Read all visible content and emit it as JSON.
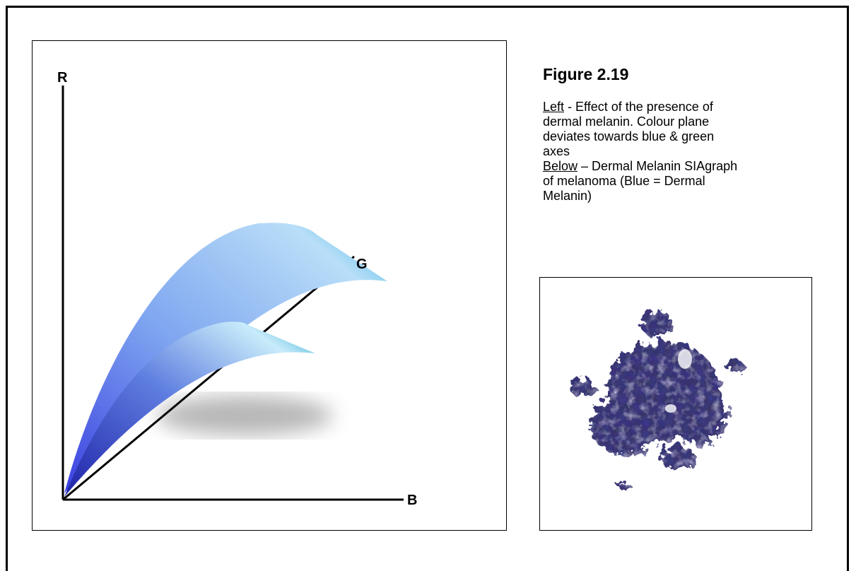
{
  "figure": {
    "axis_labels": {
      "r": "R",
      "g": "G",
      "b": "B"
    }
  },
  "caption": {
    "title": "Figure 2.19",
    "left_label": "Left",
    "left_text": "- Effect of the presence of dermal melanin. Colour plane deviates towards blue & green axes",
    "below_label": "Below",
    "below_text": "– Dermal Melanin SIAgraph of melanoma (Blue = Dermal Melanin)"
  }
}
